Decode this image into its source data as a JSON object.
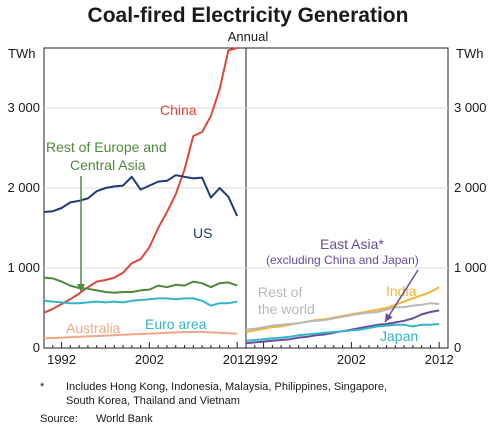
{
  "chart_data": {
    "type": "line",
    "title": "Coal-fired Electricity Generation",
    "subtitle": "Annual",
    "unit": "TWh",
    "ylim": [
      0,
      3750
    ],
    "yticks": [
      0,
      1000,
      2000,
      3000
    ],
    "ytick_labels": [
      "0",
      "1 000",
      "2 000",
      "3 000"
    ],
    "xlim": [
      1990,
      2013
    ],
    "xticks": [
      1992,
      2002,
      2012
    ],
    "colors": {
      "China": "#e0473c",
      "US": "#1f3a7a",
      "Rest of Europe and Central Asia": "#4f8a3a",
      "Euro area": "#33b5c6",
      "Australia": "#f2a888",
      "East Asia": "#6a4c9c",
      "India": "#f5b52e",
      "Rest of the world": "#b8b8b8",
      "Japan": "#33b5c6"
    },
    "panels": [
      {
        "series": [
          {
            "name": "China",
            "x": [
              1990,
              1991,
              1992,
              1993,
              1994,
              1995,
              1996,
              1997,
              1998,
              1999,
              2000,
              2001,
              2002,
              2003,
              2004,
              2005,
              2006,
              2007,
              2008,
              2009,
              2010,
              2011,
              2012
            ],
            "values": [
              440,
              490,
              550,
              610,
              680,
              760,
              830,
              850,
              880,
              940,
              1060,
              1110,
              1260,
              1500,
              1700,
              1920,
              2230,
              2650,
              2700,
              2900,
              3240,
              3720,
              3750
            ]
          },
          {
            "name": "US",
            "x": [
              1990,
              1991,
              1992,
              1993,
              1994,
              1995,
              1996,
              1997,
              1998,
              1999,
              2000,
              2001,
              2002,
              2003,
              2004,
              2005,
              2006,
              2007,
              2008,
              2009,
              2010,
              2011,
              2012
            ],
            "values": [
              1700,
              1710,
              1750,
              1820,
              1840,
              1870,
              1960,
              2000,
              2020,
              2030,
              2140,
              1980,
              2030,
              2080,
              2090,
              2160,
              2140,
              2120,
              2130,
              1880,
              2000,
              1890,
              1650
            ]
          },
          {
            "name": "Rest of Europe and Central Asia",
            "x": [
              1990,
              1991,
              1992,
              1993,
              1994,
              1995,
              1996,
              1997,
              1998,
              1999,
              2000,
              2001,
              2002,
              2003,
              2004,
              2005,
              2006,
              2007,
              2008,
              2009,
              2010,
              2011,
              2012
            ],
            "values": [
              880,
              870,
              830,
              780,
              750,
              740,
              720,
              700,
              690,
              700,
              700,
              720,
              730,
              780,
              760,
              790,
              780,
              830,
              810,
              760,
              810,
              820,
              780
            ]
          },
          {
            "name": "Euro area",
            "x": [
              1990,
              1991,
              1992,
              1993,
              1994,
              1995,
              1996,
              1997,
              1998,
              1999,
              2000,
              2001,
              2002,
              2003,
              2004,
              2005,
              2006,
              2007,
              2008,
              2009,
              2010,
              2011,
              2012
            ],
            "values": [
              590,
              580,
              570,
              560,
              560,
              570,
              580,
              570,
              580,
              570,
              590,
              600,
              610,
              620,
              620,
              610,
              620,
              620,
              590,
              530,
              560,
              560,
              580
            ]
          },
          {
            "name": "Australia",
            "x": [
              1990,
              1991,
              1992,
              1993,
              1994,
              1995,
              1996,
              1997,
              1998,
              1999,
              2000,
              2001,
              2002,
              2003,
              2004,
              2005,
              2006,
              2007,
              2008,
              2009,
              2010,
              2011,
              2012
            ],
            "values": [
              120,
              125,
              130,
              135,
              140,
              145,
              150,
              155,
              160,
              165,
              170,
              175,
              180,
              185,
              190,
              195,
              200,
              200,
              200,
              195,
              190,
              185,
              180
            ]
          }
        ],
        "labels": [
          {
            "text": "China",
            "series": "China"
          },
          {
            "text": "US",
            "series": "US"
          },
          {
            "text": "Rest of Europe and",
            "series": "Rest of Europe and Central Asia"
          },
          {
            "text": "Central Asia",
            "series": "Rest of Europe and Central Asia"
          },
          {
            "text": "Euro area",
            "series": "Euro area"
          },
          {
            "text": "Australia",
            "series": "Australia"
          }
        ]
      },
      {
        "series": [
          {
            "name": "East Asia",
            "x": [
              1990,
              1991,
              1992,
              1993,
              1994,
              1995,
              1996,
              1997,
              1998,
              1999,
              2000,
              2001,
              2002,
              2003,
              2004,
              2005,
              2006,
              2007,
              2008,
              2009,
              2010,
              2011,
              2012
            ],
            "values": [
              60,
              70,
              80,
              90,
              100,
              110,
              130,
              140,
              160,
              170,
              190,
              210,
              230,
              250,
              270,
              290,
              300,
              320,
              340,
              370,
              420,
              450,
              470
            ]
          },
          {
            "name": "India",
            "x": [
              1990,
              1991,
              1992,
              1993,
              1994,
              1995,
              1996,
              1997,
              1998,
              1999,
              2000,
              2001,
              2002,
              2003,
              2004,
              2005,
              2006,
              2007,
              2008,
              2009,
              2010,
              2011,
              2012
            ],
            "values": [
              200,
              220,
              240,
              260,
              270,
              290,
              310,
              330,
              350,
              360,
              380,
              400,
              420,
              440,
              460,
              480,
              500,
              540,
              580,
              620,
              660,
              700,
              760
            ]
          },
          {
            "name": "Rest of the world",
            "x": [
              1990,
              1991,
              1992,
              1993,
              1994,
              1995,
              1996,
              1997,
              1998,
              1999,
              2000,
              2001,
              2002,
              2003,
              2004,
              2005,
              2006,
              2007,
              2008,
              2009,
              2010,
              2011,
              2012
            ],
            "values": [
              230,
              240,
              260,
              280,
              290,
              300,
              310,
              330,
              340,
              350,
              370,
              390,
              410,
              430,
              440,
              450,
              480,
              510,
              510,
              530,
              540,
              560,
              550
            ]
          },
          {
            "name": "Japan",
            "x": [
              1990,
              1991,
              1992,
              1993,
              1994,
              1995,
              1996,
              1997,
              1998,
              1999,
              2000,
              2001,
              2002,
              2003,
              2004,
              2005,
              2006,
              2007,
              2008,
              2009,
              2010,
              2011,
              2012
            ],
            "values": [
              90,
              100,
              110,
              120,
              130,
              140,
              160,
              170,
              180,
              190,
              200,
              210,
              220,
              230,
              250,
              270,
              280,
              290,
              290,
              270,
              290,
              290,
              300
            ]
          }
        ],
        "labels": [
          {
            "text": "East Asia*",
            "series": "East Asia"
          },
          {
            "text": "(excluding China and Japan)",
            "series": "East Asia"
          },
          {
            "text": "India",
            "series": "India"
          },
          {
            "text": "Rest of",
            "series": "Rest of the world"
          },
          {
            "text": "the world",
            "series": "Rest of the world"
          },
          {
            "text": "Japan",
            "series": "Japan"
          }
        ]
      }
    ]
  },
  "footnote": {
    "marker": "*",
    "line1": "Includes Hong Kong, Indonesia, Malaysia, Philippines, Singapore,",
    "line2": "South Korea, Thailand and Vietnam",
    "source_label": "Source:",
    "source_text": "World Bank"
  }
}
